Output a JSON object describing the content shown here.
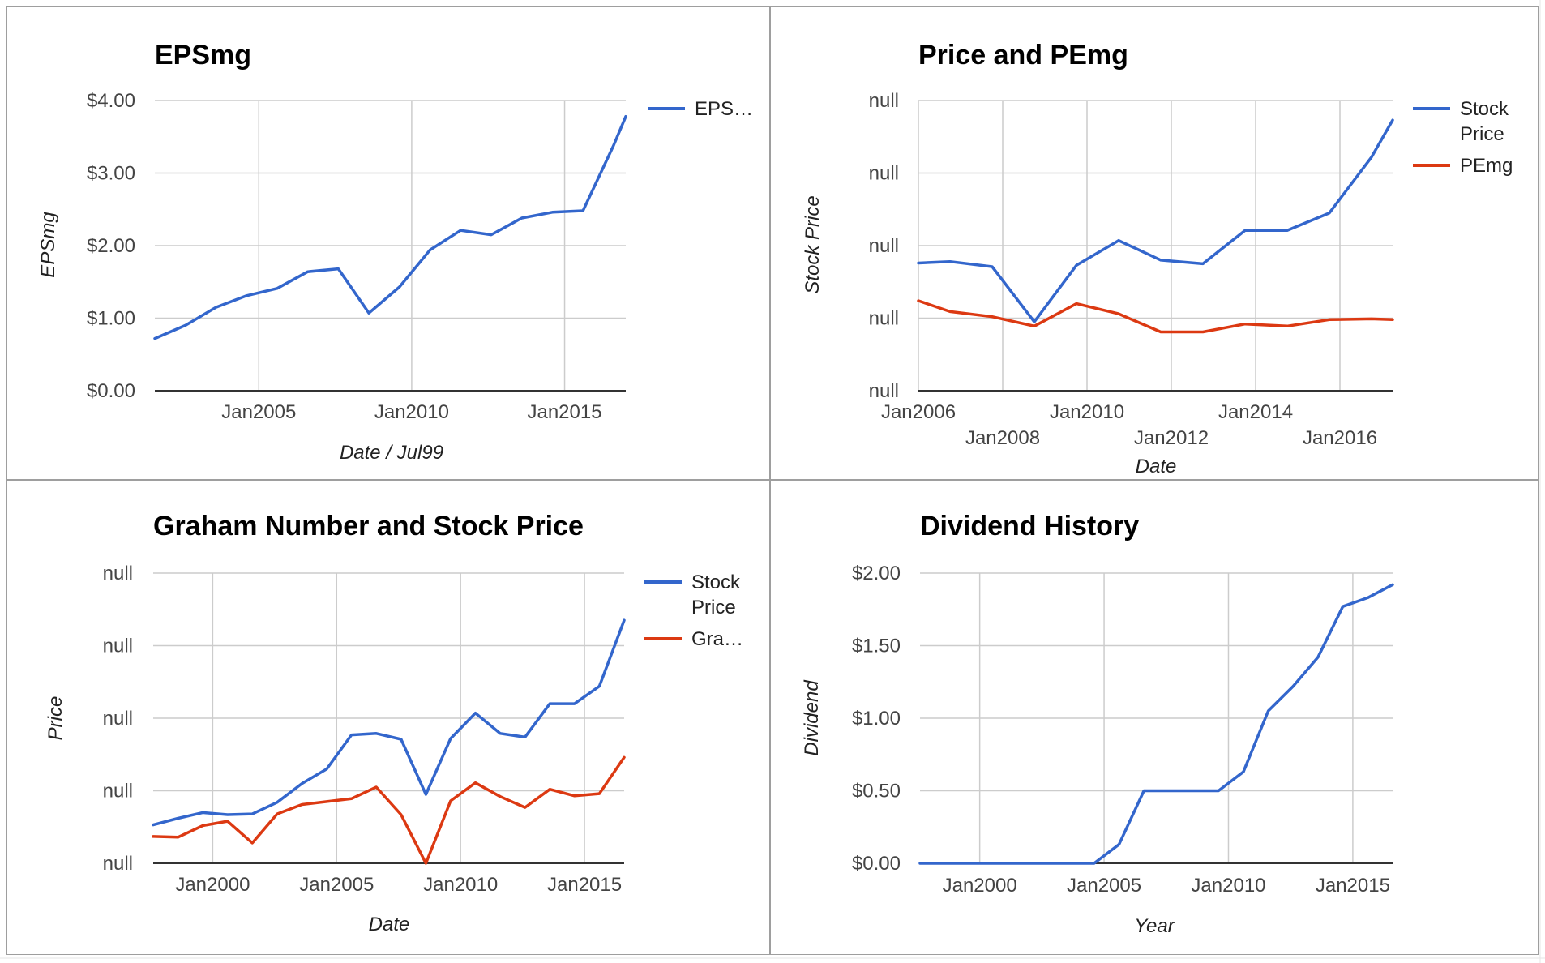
{
  "colors": {
    "blue": "#3366cc",
    "red": "#dc3912",
    "grid": "#cccccc"
  },
  "chart_data": [
    {
      "id": "epsmg",
      "type": "line",
      "title": "EPSmg",
      "xlabel": "Date / Jul99",
      "ylabel": "EPSmg",
      "legend_position": "right",
      "legend": [
        "EPS…"
      ],
      "ylim": [
        0,
        4
      ],
      "y_ticks": [
        0,
        1,
        2,
        3,
        4
      ],
      "y_tick_labels": [
        "$0.00",
        "$1.00",
        "$2.00",
        "$3.00",
        "$4.00"
      ],
      "xlim": [
        2001.6,
        2017.0
      ],
      "x_ticks": [
        2005,
        2010,
        2015
      ],
      "x_tick_labels": [
        "Jan2005",
        "Jan2010",
        "Jan2015"
      ],
      "grid": true,
      "series": [
        {
          "color": "#3366cc",
          "x": [
            2001.6,
            2002.6,
            2003.6,
            2004.6,
            2005.6,
            2006.6,
            2007.6,
            2008.6,
            2009.6,
            2010.6,
            2011.6,
            2012.6,
            2013.6,
            2014.6,
            2015.6,
            2016.6,
            2017.0
          ],
          "y": [
            0.72,
            0.9,
            1.15,
            1.31,
            1.41,
            1.64,
            1.68,
            1.07,
            1.43,
            1.94,
            2.21,
            2.15,
            2.38,
            2.46,
            2.48,
            3.38,
            3.78
          ]
        }
      ]
    },
    {
      "id": "price-pemg",
      "type": "line",
      "title": "Price and PEmg",
      "xlabel": "Date",
      "ylabel": "Stock Price",
      "legend_position": "right",
      "legend": [
        "Stock Price",
        "PEmg"
      ],
      "y_ticks": [
        0,
        1,
        2,
        3,
        4
      ],
      "y_tick_labels": [
        "null",
        "null",
        "null",
        "null",
        "null"
      ],
      "ylim": [
        0,
        4
      ],
      "xlim": [
        2006.0,
        2017.25
      ],
      "x_ticks": [
        2006,
        2008,
        2010,
        2012,
        2014,
        2016
      ],
      "x_tick_labels": [
        "Jan2006",
        "Jan2008",
        "Jan2010",
        "Jan2012",
        "Jan2014",
        "Jan2016"
      ],
      "grid": true,
      "series": [
        {
          "name": "Stock Price",
          "color": "#3366cc",
          "x": [
            2006.0,
            2006.75,
            2007.75,
            2008.75,
            2009.75,
            2010.75,
            2011.75,
            2012.75,
            2013.75,
            2014.75,
            2015.75,
            2016.75,
            2017.25
          ],
          "y": [
            1.76,
            1.78,
            1.71,
            0.95,
            1.73,
            2.07,
            1.8,
            1.75,
            2.21,
            2.21,
            2.45,
            3.22,
            3.73
          ]
        },
        {
          "name": "PEmg",
          "color": "#dc3912",
          "x": [
            2006.0,
            2006.75,
            2007.75,
            2008.75,
            2009.75,
            2010.75,
            2011.75,
            2012.75,
            2013.75,
            2014.75,
            2015.75,
            2016.75,
            2017.25
          ],
          "y": [
            1.24,
            1.09,
            1.02,
            0.89,
            1.2,
            1.06,
            0.81,
            0.81,
            0.92,
            0.89,
            0.98,
            0.99,
            0.98
          ]
        }
      ]
    },
    {
      "id": "graham",
      "type": "line",
      "title": "Graham Number and Stock Price",
      "xlabel": "Date",
      "ylabel": "Price",
      "legend_position": "right",
      "legend": [
        "Stock Price",
        "Gra…"
      ],
      "y_ticks": [
        0,
        1,
        2,
        3,
        4
      ],
      "y_tick_labels": [
        "null",
        "null",
        "null",
        "null",
        "null"
      ],
      "ylim": [
        0,
        4
      ],
      "xlim": [
        1997.6,
        2016.6
      ],
      "x_ticks": [
        2000,
        2005,
        2010,
        2015
      ],
      "x_tick_labels": [
        "Jan2000",
        "Jan2005",
        "Jan2010",
        "Jan2015"
      ],
      "grid": true,
      "series": [
        {
          "name": "Stock Price",
          "color": "#3366cc",
          "x": [
            1997.6,
            1998.6,
            1999.6,
            2000.6,
            2001.6,
            2002.6,
            2003.6,
            2004.6,
            2005.6,
            2006.6,
            2007.6,
            2008.6,
            2009.6,
            2010.6,
            2011.6,
            2012.6,
            2013.6,
            2014.6,
            2015.6,
            2016.6
          ],
          "y": [
            0.53,
            0.62,
            0.7,
            0.67,
            0.68,
            0.84,
            1.1,
            1.3,
            1.77,
            1.79,
            1.71,
            0.95,
            1.72,
            2.07,
            1.79,
            1.74,
            2.2,
            2.2,
            2.44,
            3.35
          ]
        },
        {
          "name": "Gra…",
          "color": "#dc3912",
          "x": [
            1997.6,
            1998.6,
            1999.6,
            2000.6,
            2001.6,
            2002.6,
            2003.6,
            2004.6,
            2005.6,
            2006.6,
            2007.6,
            2008.6,
            2009.6,
            2010.6,
            2011.6,
            2012.6,
            2013.6,
            2014.6,
            2015.6,
            2016.6
          ],
          "y": [
            0.37,
            0.36,
            0.52,
            0.58,
            0.28,
            0.68,
            0.81,
            0.85,
            0.89,
            1.05,
            0.67,
            0.0,
            0.86,
            1.11,
            0.92,
            0.77,
            1.02,
            0.93,
            0.96,
            1.46
          ]
        }
      ]
    },
    {
      "id": "dividend",
      "type": "line",
      "title": "Dividend History",
      "xlabel": "Year",
      "ylabel": "Dividend",
      "legend_position": "none",
      "ylim": [
        0,
        2
      ],
      "y_ticks": [
        0,
        0.5,
        1.0,
        1.5,
        2.0
      ],
      "y_tick_labels": [
        "$0.00",
        "$0.50",
        "$1.00",
        "$1.50",
        "$2.00"
      ],
      "xlim": [
        1997.6,
        2016.6
      ],
      "x_ticks": [
        2000,
        2005,
        2010,
        2015
      ],
      "x_tick_labels": [
        "Jan2000",
        "Jan2005",
        "Jan2010",
        "Jan2015"
      ],
      "grid": true,
      "series": [
        {
          "color": "#3366cc",
          "x": [
            1997.6,
            1998.6,
            1999.6,
            2000.6,
            2001.6,
            2002.6,
            2003.6,
            2004.6,
            2005.6,
            2006.6,
            2007.6,
            2008.6,
            2009.6,
            2010.6,
            2011.6,
            2012.6,
            2013.6,
            2014.6,
            2015.6,
            2016.6
          ],
          "y": [
            0,
            0,
            0,
            0,
            0,
            0,
            0,
            0,
            0.13,
            0.5,
            0.5,
            0.5,
            0.5,
            0.63,
            1.05,
            1.22,
            1.42,
            1.77,
            1.83,
            1.92
          ]
        }
      ]
    }
  ]
}
